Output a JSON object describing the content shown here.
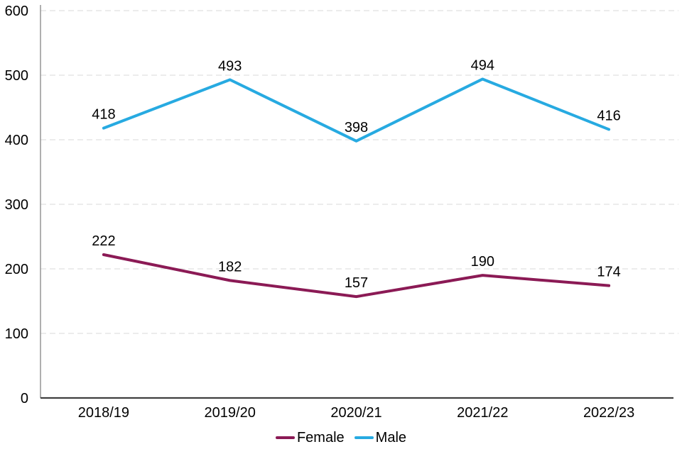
{
  "chart_data": {
    "type": "line",
    "title": "",
    "xlabel": "",
    "ylabel": "",
    "categories": [
      "2018/19",
      "2019/20",
      "2020/21",
      "2021/22",
      "2022/23"
    ],
    "series": [
      {
        "name": "Female",
        "color": "#8B1A55",
        "values": [
          222,
          182,
          157,
          190,
          174
        ]
      },
      {
        "name": "Male",
        "color": "#27AAE1",
        "values": [
          418,
          493,
          398,
          494,
          416
        ]
      }
    ],
    "ylim": [
      0,
      600
    ],
    "yticks": [
      0,
      100,
      200,
      300,
      400,
      500,
      600
    ],
    "grid": "horizontal-dashed",
    "grid_color": "#D9D9D9",
    "x_axis_color": "#404040",
    "y_axis_color": "#9B9B9B",
    "tick_label_color": "#000000",
    "data_label_color": "#000000",
    "data_labels": true,
    "legend_position": "bottom-center"
  }
}
